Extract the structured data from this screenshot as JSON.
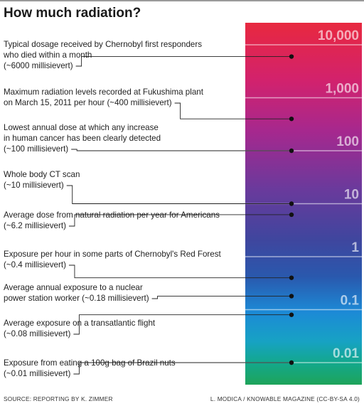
{
  "title": "How much radiation?",
  "source": "SOURCE: REPORTING BY K. ZIMMER",
  "credit": "L. MODICA / KNOWABLE MAGAZINE (CC-BY-SA 4.0)",
  "chart_data": {
    "type": "scatter",
    "title": "How much radiation?",
    "scale": "log",
    "unit": "millisievert",
    "ticks": [
      {
        "value": 10000,
        "label": "10,000"
      },
      {
        "value": 1000,
        "label": "1,000"
      },
      {
        "value": 100,
        "label": "100"
      },
      {
        "value": 10,
        "label": "10"
      },
      {
        "value": 1,
        "label": "1"
      },
      {
        "value": 0.1,
        "label": "0.1"
      },
      {
        "value": 0.01,
        "label": "0.01"
      }
    ],
    "points": [
      {
        "value": 6000,
        "text": "Typical dosage received by Chernobyl first responders\nwho died within a month\n(~6000 millisievert)"
      },
      {
        "value": 400,
        "text": "Maximum radiation levels recorded at Fukushima plant\non March 15, 2011 per hour (~400 millisievert)"
      },
      {
        "value": 100,
        "text": "Lowest annual dose at which any increase\nin human cancer has been clearly detected\n(~100 millisievert)"
      },
      {
        "value": 10,
        "text": "Whole body CT scan\n(~10 millisievert)"
      },
      {
        "value": 6.2,
        "text": "Average dose from natural radiation per year for Americans\n(~6.2 millisievert)"
      },
      {
        "value": 0.4,
        "text": "Exposure per hour in some parts of Chernobyl's Red Forest\n(~0.4 millisievert)"
      },
      {
        "value": 0.18,
        "text": "Average annual exposure to a nuclear\npower station worker (~0.18 millisievert)"
      },
      {
        "value": 0.08,
        "text": "Average exposure on a transatlantic flight\n(~0.08 millisievert)"
      },
      {
        "value": 0.01,
        "text": "Exposure from eating a 100g bag of Brazil nuts\n(~0.01 millisievert)"
      }
    ],
    "colors": [
      "#e8283f",
      "#c8207e",
      "#7a2f9a",
      "#4a3f9c",
      "#2c4f9e",
      "#1a7fd0",
      "#169fcf",
      "#12a88a",
      "#1aa35f"
    ]
  }
}
